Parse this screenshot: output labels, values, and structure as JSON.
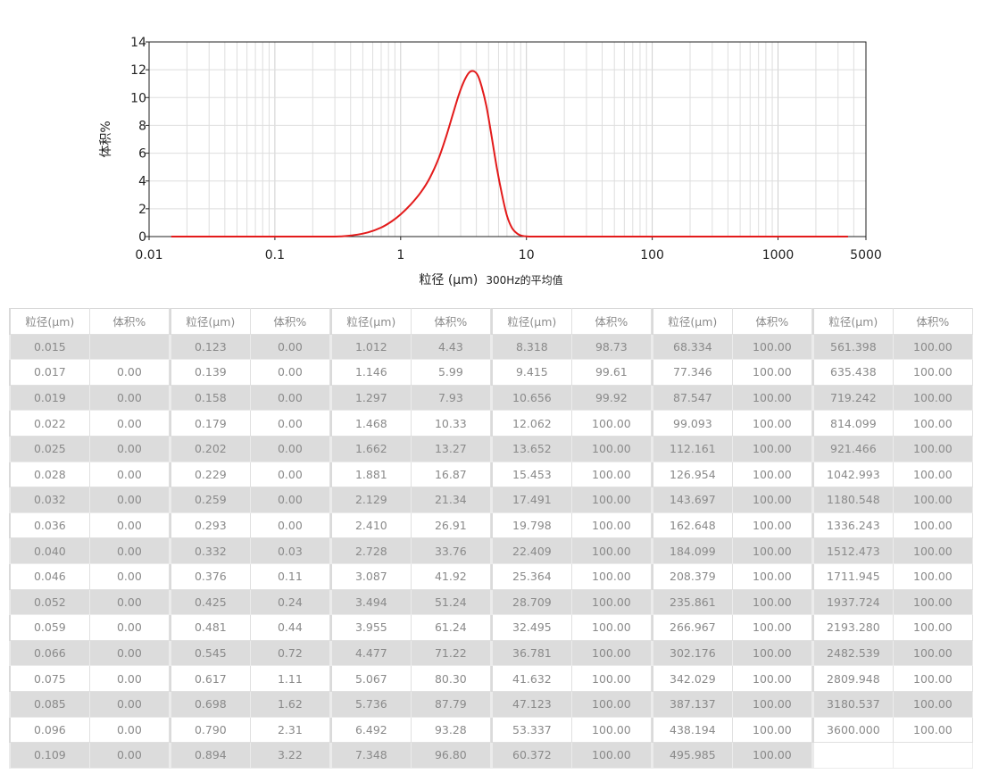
{
  "chart_data": {
    "type": "line",
    "xscale": "log",
    "xlim": [
      0.01,
      5000
    ],
    "ylim": [
      0,
      14
    ],
    "xticks": [
      "0.01",
      "0.1",
      "1",
      "10",
      "100",
      "1000",
      "5000"
    ],
    "yticks": [
      "0",
      "2",
      "4",
      "6",
      "8",
      "10",
      "12",
      "14"
    ],
    "ylabel": "体积%",
    "xlabel": "粒径 (μm)",
    "xlabel_note": "300Hz的平均值",
    "grid": true,
    "line_color": "#e31b1b",
    "series": [
      {
        "x": [
          0.015,
          0.1,
          0.3,
          0.42,
          0.55,
          0.7,
          0.85,
          1.0,
          1.2,
          1.45,
          1.7,
          2.0,
          2.3,
          2.6,
          2.9,
          3.2,
          3.5,
          3.8,
          4.1,
          4.4,
          4.8,
          5.2,
          5.8,
          6.4,
          7.0,
          7.7,
          8.5,
          9.3,
          10.2,
          11.5,
          14.0,
          100,
          1000,
          3600
        ],
        "y": [
          0,
          0,
          0,
          0.1,
          0.3,
          0.65,
          1.1,
          1.6,
          2.3,
          3.2,
          4.2,
          5.6,
          7.2,
          8.8,
          10.2,
          11.2,
          11.8,
          11.9,
          11.6,
          10.8,
          9.4,
          7.6,
          5.0,
          3.0,
          1.5,
          0.6,
          0.2,
          0.05,
          0.01,
          0,
          0,
          0,
          0,
          0
        ]
      }
    ]
  },
  "table": {
    "header_size": "粒径(μm)",
    "header_volume": "体积%",
    "columns": [
      [
        [
          "0.015",
          ""
        ],
        [
          "0.017",
          "0.00"
        ],
        [
          "0.019",
          "0.00"
        ],
        [
          "0.022",
          "0.00"
        ],
        [
          "0.025",
          "0.00"
        ],
        [
          "0.028",
          "0.00"
        ],
        [
          "0.032",
          "0.00"
        ],
        [
          "0.036",
          "0.00"
        ],
        [
          "0.040",
          "0.00"
        ],
        [
          "0.046",
          "0.00"
        ],
        [
          "0.052",
          "0.00"
        ],
        [
          "0.059",
          "0.00"
        ],
        [
          "0.066",
          "0.00"
        ],
        [
          "0.075",
          "0.00"
        ],
        [
          "0.085",
          "0.00"
        ],
        [
          "0.096",
          "0.00"
        ],
        [
          "0.109",
          "0.00"
        ]
      ],
      [
        [
          "0.123",
          "0.00"
        ],
        [
          "0.139",
          "0.00"
        ],
        [
          "0.158",
          "0.00"
        ],
        [
          "0.179",
          "0.00"
        ],
        [
          "0.202",
          "0.00"
        ],
        [
          "0.229",
          "0.00"
        ],
        [
          "0.259",
          "0.00"
        ],
        [
          "0.293",
          "0.00"
        ],
        [
          "0.332",
          "0.03"
        ],
        [
          "0.376",
          "0.11"
        ],
        [
          "0.425",
          "0.24"
        ],
        [
          "0.481",
          "0.44"
        ],
        [
          "0.545",
          "0.72"
        ],
        [
          "0.617",
          "1.11"
        ],
        [
          "0.698",
          "1.62"
        ],
        [
          "0.790",
          "2.31"
        ],
        [
          "0.894",
          "3.22"
        ]
      ],
      [
        [
          "1.012",
          "4.43"
        ],
        [
          "1.146",
          "5.99"
        ],
        [
          "1.297",
          "7.93"
        ],
        [
          "1.468",
          "10.33"
        ],
        [
          "1.662",
          "13.27"
        ],
        [
          "1.881",
          "16.87"
        ],
        [
          "2.129",
          "21.34"
        ],
        [
          "2.410",
          "26.91"
        ],
        [
          "2.728",
          "33.76"
        ],
        [
          "3.087",
          "41.92"
        ],
        [
          "3.494",
          "51.24"
        ],
        [
          "3.955",
          "61.24"
        ],
        [
          "4.477",
          "71.22"
        ],
        [
          "5.067",
          "80.30"
        ],
        [
          "5.736",
          "87.79"
        ],
        [
          "6.492",
          "93.28"
        ],
        [
          "7.348",
          "96.80"
        ]
      ],
      [
        [
          "8.318",
          "98.73"
        ],
        [
          "9.415",
          "99.61"
        ],
        [
          "10.656",
          "99.92"
        ],
        [
          "12.062",
          "100.00"
        ],
        [
          "13.652",
          "100.00"
        ],
        [
          "15.453",
          "100.00"
        ],
        [
          "17.491",
          "100.00"
        ],
        [
          "19.798",
          "100.00"
        ],
        [
          "22.409",
          "100.00"
        ],
        [
          "25.364",
          "100.00"
        ],
        [
          "28.709",
          "100.00"
        ],
        [
          "32.495",
          "100.00"
        ],
        [
          "36.781",
          "100.00"
        ],
        [
          "41.632",
          "100.00"
        ],
        [
          "47.123",
          "100.00"
        ],
        [
          "53.337",
          "100.00"
        ],
        [
          "60.372",
          "100.00"
        ]
      ],
      [
        [
          "68.334",
          "100.00"
        ],
        [
          "77.346",
          "100.00"
        ],
        [
          "87.547",
          "100.00"
        ],
        [
          "99.093",
          "100.00"
        ],
        [
          "112.161",
          "100.00"
        ],
        [
          "126.954",
          "100.00"
        ],
        [
          "143.697",
          "100.00"
        ],
        [
          "162.648",
          "100.00"
        ],
        [
          "184.099",
          "100.00"
        ],
        [
          "208.379",
          "100.00"
        ],
        [
          "235.861",
          "100.00"
        ],
        [
          "266.967",
          "100.00"
        ],
        [
          "302.176",
          "100.00"
        ],
        [
          "342.029",
          "100.00"
        ],
        [
          "387.137",
          "100.00"
        ],
        [
          "438.194",
          "100.00"
        ],
        [
          "495.985",
          "100.00"
        ]
      ],
      [
        [
          "561.398",
          "100.00"
        ],
        [
          "635.438",
          "100.00"
        ],
        [
          "719.242",
          "100.00"
        ],
        [
          "814.099",
          "100.00"
        ],
        [
          "921.466",
          "100.00"
        ],
        [
          "1042.993",
          "100.00"
        ],
        [
          "1180.548",
          "100.00"
        ],
        [
          "1336.243",
          "100.00"
        ],
        [
          "1512.473",
          "100.00"
        ],
        [
          "1711.945",
          "100.00"
        ],
        [
          "1937.724",
          "100.00"
        ],
        [
          "2193.280",
          "100.00"
        ],
        [
          "2482.539",
          "100.00"
        ],
        [
          "2809.948",
          "100.00"
        ],
        [
          "3180.537",
          "100.00"
        ],
        [
          "3600.000",
          "100.00"
        ],
        [
          "",
          ""
        ]
      ]
    ]
  }
}
